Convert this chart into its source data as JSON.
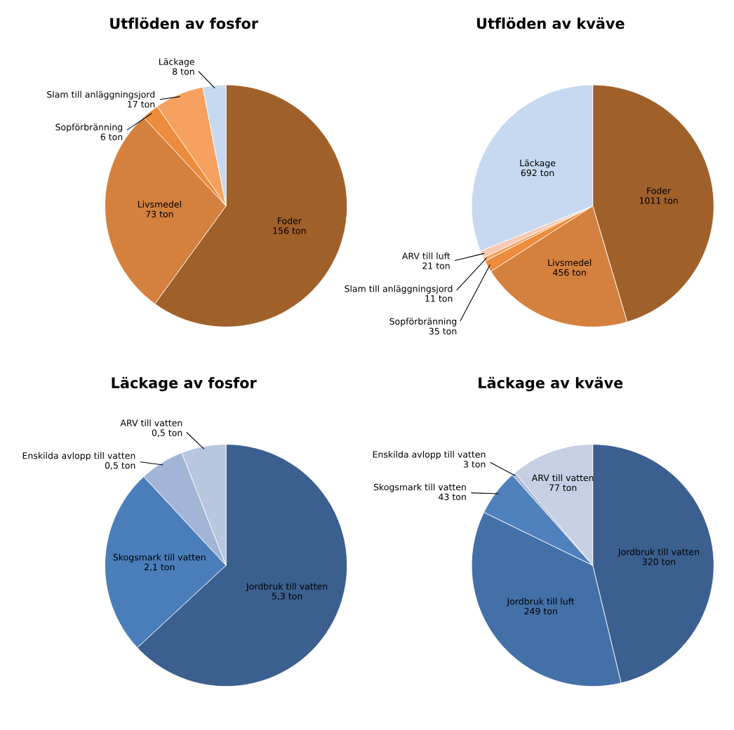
{
  "chart_data": [
    {
      "type": "pie",
      "title": "Utflöden av fosfor",
      "categories": [
        "Foder",
        "Livsmedel",
        "Sopförbränning",
        "Slam till anläggningsjord",
        "Läckage"
      ],
      "values": [
        156,
        73,
        6,
        17,
        8
      ],
      "value_labels": [
        "156 ton",
        "73 ton",
        "6 ton",
        "17 ton",
        "8 ton"
      ],
      "colors": [
        "#a0602a",
        "#d4803f",
        "#ec8c3c",
        "#f6a15f",
        "#c6d9f0"
      ]
    },
    {
      "type": "pie",
      "title": "Utflöden av kväve",
      "categories": [
        "Foder",
        "Livsmedel",
        "Sopförbränning",
        "Slam till anläggningsjord",
        "ARV till luft",
        "Läckage"
      ],
      "values": [
        1011,
        456,
        35,
        11,
        21,
        692
      ],
      "value_labels": [
        "1011 ton",
        "456 ton",
        "35 ton",
        "11 ton",
        "21 ton",
        "692 ton"
      ],
      "colors": [
        "#a0602a",
        "#d4803f",
        "#ec8c3c",
        "#f6a15f",
        "#f8c9b4",
        "#c6d9f0"
      ]
    },
    {
      "type": "pie",
      "title": "Läckage av fosfor",
      "categories": [
        "Jordbruk till vatten",
        "Skogsmark till vatten",
        "Enskilda avlopp till vatten",
        "ARV till vatten"
      ],
      "values": [
        5.3,
        2.1,
        0.5,
        0.5
      ],
      "value_labels": [
        "5,3 ton",
        "2,1 ton",
        "0,5 ton",
        "0,5 ton"
      ],
      "colors": [
        "#3b5f8f",
        "#4a7ebb",
        "#a3b5d6",
        "#b9c6e0"
      ]
    },
    {
      "type": "pie",
      "title": "Läckage av kväve",
      "categories": [
        "Jordbruk till vatten",
        "Jordbruk till luft",
        "Skogsmark till vatten",
        "Enskilda avlopp till vatten",
        "ARV till vatten"
      ],
      "values": [
        320,
        249,
        43,
        3,
        77
      ],
      "value_labels": [
        "320 ton",
        "249 ton",
        "43 ton",
        "3 ton",
        "77 ton"
      ],
      "colors": [
        "#3b5f8f",
        "#4470a8",
        "#4f81bd",
        "#a8b8d8",
        "#c6cfe4"
      ]
    }
  ]
}
